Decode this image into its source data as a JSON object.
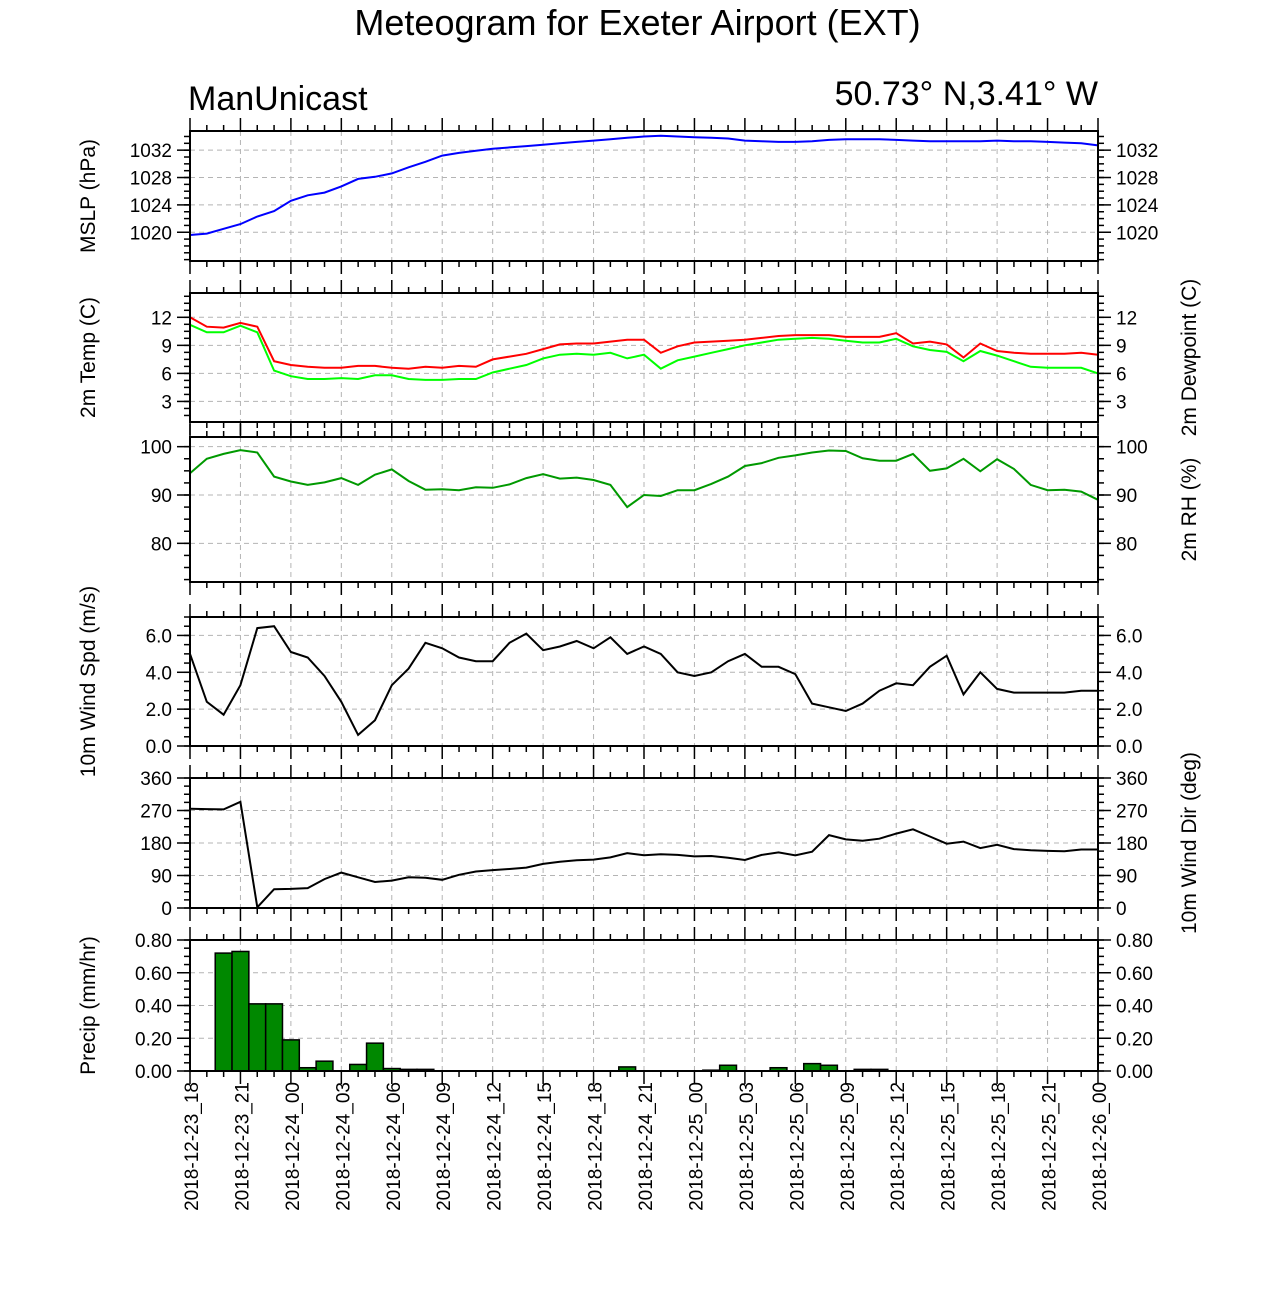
{
  "title": "Meteogram for Exeter Airport (EXT)",
  "model": "ManUnicast",
  "location": "50.73° N,3.41° W",
  "x_tick_labels": [
    "2018-12-23_18",
    "2018-12-23_21",
    "2018-12-24_00",
    "2018-12-24_03",
    "2018-12-24_06",
    "2018-12-24_09",
    "2018-12-24_12",
    "2018-12-24_15",
    "2018-12-24_18",
    "2018-12-24_21",
    "2018-12-25_00",
    "2018-12-25_03",
    "2018-12-25_06",
    "2018-12-25_09",
    "2018-12-25_12",
    "2018-12-25_15",
    "2018-12-25_18",
    "2018-12-25_21",
    "2018-12-26_00"
  ],
  "chart_data": [
    {
      "type": "line",
      "ylabel": "MSLP (hPa)",
      "ylim": [
        1015.8,
        1034.8
      ],
      "yticks": [
        1020,
        1024,
        1028,
        1032
      ],
      "ytick_labels": [
        "1020",
        "1024",
        "1028",
        "1032"
      ],
      "xlim": [
        0,
        54
      ],
      "grid": true,
      "series": [
        {
          "color": "#0000ff",
          "x": [
            0,
            1,
            2,
            3,
            4,
            5,
            6,
            7,
            8,
            9,
            10,
            11,
            12,
            13,
            14,
            15,
            16,
            17,
            18,
            19,
            20,
            21,
            22,
            23,
            24,
            25,
            26,
            27,
            28,
            29,
            30,
            31,
            32,
            33,
            34,
            35,
            36,
            37,
            38,
            39,
            40,
            41,
            42,
            43,
            44,
            45,
            46,
            47,
            48,
            49,
            50,
            51,
            52,
            53,
            54
          ],
          "values": [
            1019.6,
            1019.8,
            1020.5,
            1021.2,
            1022.3,
            1023.1,
            1024.6,
            1025.4,
            1025.8,
            1026.7,
            1027.8,
            1028.1,
            1028.6,
            1029.5,
            1030.3,
            1031.2,
            1031.6,
            1031.9,
            1032.2,
            1032.4,
            1032.6,
            1032.8,
            1033.0,
            1033.2,
            1033.4,
            1033.6,
            1033.8,
            1034.0,
            1034.1,
            1034.0,
            1033.9,
            1033.8,
            1033.7,
            1033.4,
            1033.3,
            1033.2,
            1033.2,
            1033.3,
            1033.5,
            1033.6,
            1033.6,
            1033.6,
            1033.5,
            1033.4,
            1033.3,
            1033.3,
            1033.3,
            1033.3,
            1033.4,
            1033.3,
            1033.3,
            1033.2,
            1033.1,
            1033.0,
            1032.7
          ]
        }
      ]
    },
    {
      "type": "line",
      "ylabel": "2m Temp (C)",
      "ylabel_right": "2m Dewpoint (C)",
      "ylim": [
        0.8,
        14.6
      ],
      "yticks": [
        3,
        6,
        9,
        12
      ],
      "ytick_labels": [
        "3",
        "6",
        "9",
        "12"
      ],
      "xlim": [
        0,
        54
      ],
      "grid": true,
      "series": [
        {
          "color": "#ff0000",
          "x": [
            0,
            1,
            2,
            3,
            4,
            5,
            6,
            7,
            8,
            9,
            10,
            11,
            12,
            13,
            14,
            15,
            16,
            17,
            18,
            19,
            20,
            21,
            22,
            23,
            24,
            25,
            26,
            27,
            28,
            29,
            30,
            31,
            32,
            33,
            34,
            35,
            36,
            37,
            38,
            39,
            40,
            41,
            42,
            43,
            44,
            45,
            46,
            47,
            48,
            49,
            50,
            51,
            52,
            53,
            54
          ],
          "values": [
            12.0,
            11.0,
            10.9,
            11.4,
            11.0,
            7.3,
            6.9,
            6.7,
            6.6,
            6.6,
            6.8,
            6.8,
            6.6,
            6.5,
            6.7,
            6.6,
            6.8,
            6.7,
            7.5,
            7.8,
            8.1,
            8.6,
            9.1,
            9.2,
            9.2,
            9.4,
            9.6,
            9.6,
            8.2,
            8.9,
            9.3,
            9.4,
            9.5,
            9.6,
            9.8,
            10.0,
            10.1,
            10.1,
            10.1,
            9.9,
            9.9,
            9.9,
            10.3,
            9.2,
            9.4,
            9.1,
            7.7,
            9.2,
            8.4,
            8.2,
            8.1,
            8.1,
            8.1,
            8.2,
            8.0
          ]
        },
        {
          "color": "#00ff00",
          "x": [
            0,
            1,
            2,
            3,
            4,
            5,
            6,
            7,
            8,
            9,
            10,
            11,
            12,
            13,
            14,
            15,
            16,
            17,
            18,
            19,
            20,
            21,
            22,
            23,
            24,
            25,
            26,
            27,
            28,
            29,
            30,
            31,
            32,
            33,
            34,
            35,
            36,
            37,
            38,
            39,
            40,
            41,
            42,
            43,
            44,
            45,
            46,
            47,
            48,
            49,
            50,
            51,
            52,
            53,
            54
          ],
          "values": [
            11.2,
            10.4,
            10.4,
            11.1,
            10.4,
            6.3,
            5.7,
            5.4,
            5.4,
            5.5,
            5.4,
            5.8,
            5.8,
            5.4,
            5.3,
            5.3,
            5.4,
            5.4,
            6.1,
            6.5,
            6.9,
            7.6,
            8.0,
            8.1,
            8.0,
            8.2,
            7.6,
            8.0,
            6.5,
            7.4,
            7.8,
            8.2,
            8.6,
            9.0,
            9.3,
            9.6,
            9.7,
            9.8,
            9.7,
            9.5,
            9.3,
            9.3,
            9.7,
            8.9,
            8.5,
            8.3,
            7.3,
            8.4,
            7.9,
            7.3,
            6.7,
            6.6,
            6.6,
            6.6,
            6.0
          ]
        }
      ]
    },
    {
      "type": "line",
      "ylabel": "",
      "ylabel_right": "2m RH (%)",
      "ylim": [
        72,
        102
      ],
      "yticks": [
        80,
        90,
        100
      ],
      "ytick_labels": [
        "80",
        "90",
        "100"
      ],
      "xlim": [
        0,
        54
      ],
      "grid": true,
      "series": [
        {
          "color": "#009900",
          "x": [
            0,
            1,
            2,
            3,
            4,
            5,
            6,
            7,
            8,
            9,
            10,
            11,
            12,
            13,
            14,
            15,
            16,
            17,
            18,
            19,
            20,
            21,
            22,
            23,
            24,
            25,
            26,
            27,
            28,
            29,
            30,
            31,
            32,
            33,
            34,
            35,
            36,
            37,
            38,
            39,
            40,
            41,
            42,
            43,
            44,
            45,
            46,
            47,
            48,
            49,
            50,
            51,
            52,
            53,
            54
          ],
          "values": [
            94.5,
            97.5,
            98.5,
            99.3,
            98.8,
            93.8,
            92.8,
            92.1,
            92.6,
            93.5,
            92.1,
            94.2,
            95.3,
            92.9,
            91.1,
            91.2,
            91.0,
            91.6,
            91.5,
            92.2,
            93.5,
            94.3,
            93.4,
            93.6,
            93.1,
            92.1,
            87.5,
            90.0,
            89.8,
            91.0,
            91.0,
            92.3,
            93.8,
            96.0,
            96.6,
            97.7,
            98.2,
            98.8,
            99.2,
            99.1,
            97.6,
            97.1,
            97.1,
            98.5,
            95.0,
            95.5,
            97.5,
            94.9,
            97.4,
            95.4,
            92.1,
            91.0,
            91.1,
            90.7,
            89.0
          ]
        }
      ]
    },
    {
      "type": "line",
      "ylabel": "10m Wind Spd (m/s)",
      "ylim": [
        0,
        7.0
      ],
      "yticks": [
        0,
        2,
        4,
        6
      ],
      "ytick_labels": [
        "0.0",
        "2.0",
        "4.0",
        "6.0"
      ],
      "xlim": [
        0,
        54
      ],
      "grid": true,
      "series": [
        {
          "color": "#000000",
          "x": [
            0,
            1,
            2,
            3,
            4,
            5,
            6,
            7,
            8,
            9,
            10,
            11,
            12,
            13,
            14,
            15,
            16,
            17,
            18,
            19,
            20,
            21,
            22,
            23,
            24,
            25,
            26,
            27,
            28,
            29,
            30,
            31,
            32,
            33,
            34,
            35,
            36,
            37,
            38,
            39,
            40,
            41,
            42,
            43,
            44,
            45,
            46,
            47,
            48,
            49,
            50,
            51,
            52,
            53,
            54
          ],
          "values": [
            5.0,
            2.4,
            1.7,
            3.3,
            6.4,
            6.5,
            5.1,
            4.8,
            3.8,
            2.4,
            0.6,
            1.4,
            3.3,
            4.2,
            5.6,
            5.3,
            4.8,
            4.6,
            4.6,
            5.6,
            6.1,
            5.2,
            5.4,
            5.7,
            5.3,
            5.9,
            5.0,
            5.4,
            5.0,
            4.0,
            3.8,
            4.0,
            4.6,
            5.0,
            4.3,
            4.3,
            3.9,
            2.3,
            2.1,
            1.9,
            2.3,
            3.0,
            3.4,
            3.3,
            4.3,
            4.9,
            2.8,
            4.0,
            3.1,
            2.9,
            2.9,
            2.9,
            2.9,
            3.0,
            3.0
          ]
        }
      ]
    },
    {
      "type": "line",
      "ylabel": "",
      "ylabel_right": "10m Wind Dir (deg)",
      "ylim": [
        0,
        360
      ],
      "yticks": [
        0,
        90,
        180,
        270,
        360
      ],
      "ytick_labels": [
        "0",
        "90",
        "180",
        "270",
        "360"
      ],
      "xlim": [
        0,
        54
      ],
      "grid": true,
      "series": [
        {
          "color": "#000000",
          "x": [
            0,
            1,
            2,
            3,
            4,
            5,
            6,
            7,
            8,
            9,
            10,
            11,
            12,
            13,
            14,
            15,
            16,
            17,
            18,
            19,
            20,
            21,
            22,
            23,
            24,
            25,
            26,
            27,
            28,
            29,
            30,
            31,
            32,
            33,
            34,
            35,
            36,
            37,
            38,
            39,
            40,
            41,
            42,
            43,
            44,
            45,
            46,
            47,
            48,
            49,
            50,
            51,
            52,
            53,
            54
          ],
          "values": [
            275,
            274,
            273,
            294,
            2,
            52,
            53,
            55,
            80,
            98,
            85,
            72,
            76,
            85,
            84,
            78,
            92,
            101,
            105,
            108,
            112,
            122,
            128,
            132,
            134,
            140,
            152,
            146,
            149,
            147,
            143,
            144,
            139,
            133,
            147,
            154,
            146,
            156,
            202,
            190,
            186,
            192,
            206,
            218,
            198,
            178,
            184,
            166,
            175,
            163,
            160,
            158,
            157,
            162,
            162
          ]
        }
      ]
    },
    {
      "type": "bar",
      "ylabel": "Precip (mm/hr)",
      "ylim": [
        0,
        0.8
      ],
      "yticks": [
        0,
        0.2,
        0.4,
        0.6,
        0.8
      ],
      "ytick_labels": [
        "0.00",
        "0.20",
        "0.40",
        "0.60",
        "0.80"
      ],
      "xlim": [
        0,
        54
      ],
      "grid": true,
      "bar_color": "#008800",
      "series": [
        {
          "x": [
            2,
            3,
            4,
            5,
            6,
            7,
            8,
            10,
            11,
            12,
            13,
            14,
            26,
            31,
            32,
            35,
            37,
            38,
            40,
            41
          ],
          "values": [
            0.72,
            0.73,
            0.41,
            0.41,
            0.19,
            0.02,
            0.06,
            0.04,
            0.17,
            0.015,
            0.01,
            0.01,
            0.025,
            0.005,
            0.035,
            0.02,
            0.045,
            0.035,
            0.01,
            0.01
          ]
        }
      ]
    }
  ]
}
